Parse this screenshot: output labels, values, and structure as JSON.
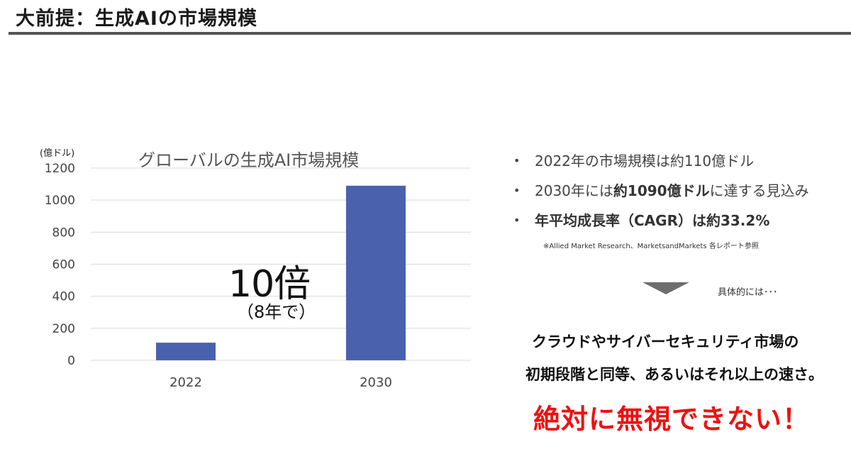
{
  "header": {
    "title": "大前提：生成AIの市場規模"
  },
  "chart_data": {
    "type": "bar",
    "title": "グローバルの生成AI市場規模",
    "ylabel": "(億ドル)",
    "xlabel": "",
    "categories": [
      "2022",
      "2030"
    ],
    "values": [
      110,
      1090
    ],
    "ylim": [
      0,
      1200
    ],
    "yticks": [
      0,
      200,
      400,
      600,
      800,
      1000,
      1200
    ],
    "grid": true,
    "bar_color": "#4a62ad",
    "annotation": {
      "main": "10倍",
      "sub": "（8年で）"
    }
  },
  "bullets": [
    {
      "prefix": "2022年の市場規模は約110億ドル",
      "bold": "",
      "suffix": ""
    },
    {
      "prefix": "2030年には",
      "bold": "約1090億ドル",
      "suffix": "に達する見込み"
    },
    {
      "prefix": "",
      "bold": "年平均成長率（CAGR）は約33.2%",
      "suffix": ""
    }
  ],
  "bullet_marker": "•",
  "source_note": "※Allied Market Research、MarketsandMarkets 各レポート参照",
  "transition": {
    "label": "具体的には･･･"
  },
  "statements": {
    "line1": "クラウドやサイバーセキュリティ市場の",
    "line2": "初期段階と同等、あるいはそれ以上の速さ。",
    "emphasis": "絶対に無視できない！"
  },
  "colors": {
    "rule": "#555555",
    "emphasis": "#ee1111",
    "bar": "#4a62ad"
  }
}
